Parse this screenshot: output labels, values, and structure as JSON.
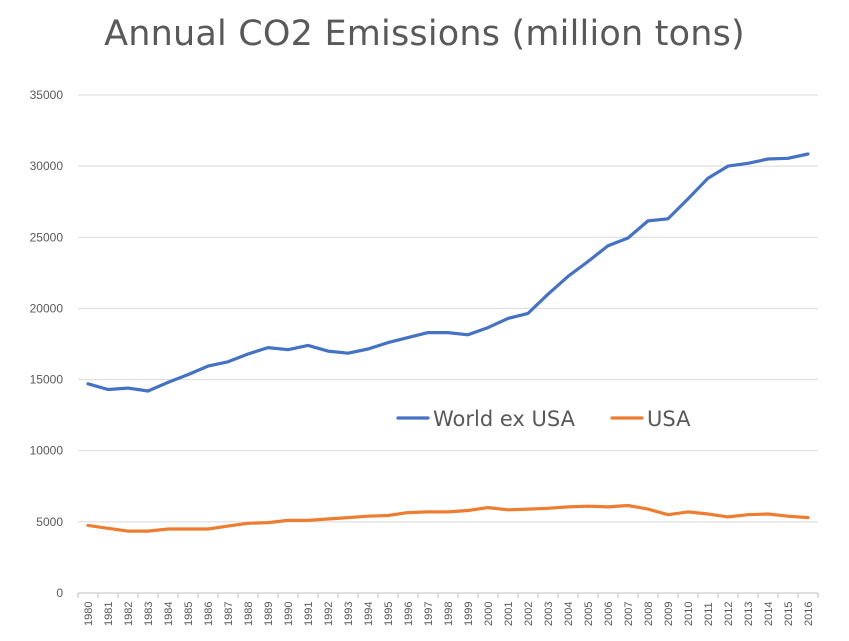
{
  "chart_data": {
    "type": "line",
    "title": "Annual CO2 Emissions (million tons)",
    "xlabel": "",
    "ylabel": "",
    "ylim": [
      0,
      35000
    ],
    "yticks": [
      0,
      5000,
      10000,
      15000,
      20000,
      25000,
      30000,
      35000
    ],
    "grid": true,
    "legend_position": "center-right",
    "x": [
      "1980",
      "1981",
      "1982",
      "1983",
      "1984",
      "1985",
      "1986",
      "1987",
      "1988",
      "1989",
      "1990",
      "1991",
      "1992",
      "1993",
      "1994",
      "1995",
      "1996",
      "1997",
      "1998",
      "1999",
      "2000",
      "2001",
      "2002",
      "2003",
      "2004",
      "2005",
      "2006",
      "2007",
      "2008",
      "2009",
      "2010",
      "2011",
      "2012",
      "2013",
      "2014",
      "2015",
      "2016"
    ],
    "series": [
      {
        "name": "World ex USA",
        "color": "#4472C4",
        "values": [
          14700,
          14300,
          14400,
          14200,
          14800,
          15350,
          15950,
          16250,
          16800,
          17250,
          17100,
          17400,
          17000,
          16850,
          17150,
          17600,
          17950,
          18300,
          18300,
          18150,
          18650,
          19300,
          19650,
          21000,
          22250,
          23300,
          24400,
          24950,
          26150,
          26300,
          27700,
          29150,
          30000,
          30200,
          30500,
          30550,
          30850
        ]
      },
      {
        "name": "USA",
        "color": "#ED7D31",
        "values": [
          4750,
          4550,
          4350,
          4350,
          4500,
          4500,
          4500,
          4700,
          4900,
          4950,
          5100,
          5100,
          5200,
          5300,
          5400,
          5450,
          5650,
          5700,
          5700,
          5800,
          6000,
          5850,
          5900,
          5950,
          6050,
          6100,
          6050,
          6150,
          5900,
          5500,
          5700,
          5550,
          5350,
          5500,
          5550,
          5400,
          5300
        ]
      }
    ]
  }
}
